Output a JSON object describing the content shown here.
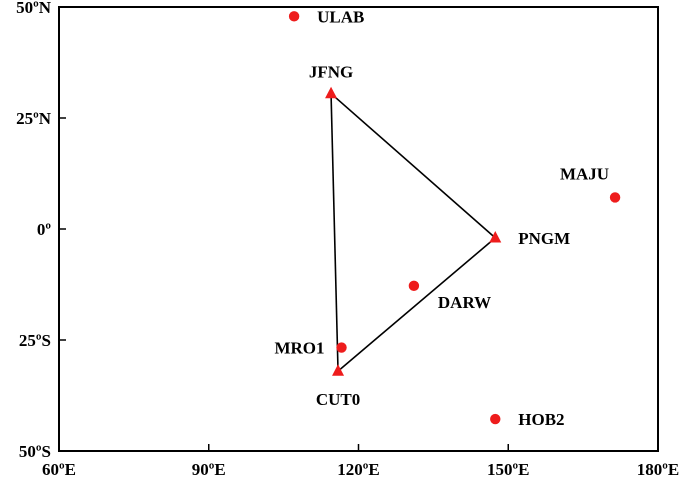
{
  "chart_data": {
    "type": "scatter",
    "title": "",
    "xlabel": "",
    "ylabel": "",
    "xlim": [
      60,
      180
    ],
    "ylim": [
      -50,
      50
    ],
    "grid": false,
    "x_ticks": [
      {
        "value": 60,
        "label": "60ºE"
      },
      {
        "value": 90,
        "label": "90ºE"
      },
      {
        "value": 120,
        "label": "120ºE"
      },
      {
        "value": 150,
        "label": "150ºE"
      },
      {
        "value": 180,
        "label": "180ºE"
      }
    ],
    "y_ticks": [
      {
        "value": 50,
        "label": "50ºN"
      },
      {
        "value": 25,
        "label": "25ºN"
      },
      {
        "value": 0,
        "label": "0º"
      },
      {
        "value": -25,
        "label": "25ºS"
      },
      {
        "value": -50,
        "label": "50ºS"
      }
    ],
    "triangle_stations": [
      {
        "name": "JFNG",
        "lon": 114.5,
        "lat": 30.5,
        "label_pos": "above"
      },
      {
        "name": "PNGM",
        "lon": 147.4,
        "lat": -2.0,
        "label_pos": "right"
      },
      {
        "name": "CUT0",
        "lon": 115.9,
        "lat": -32.0,
        "label_pos": "below"
      }
    ],
    "dot_stations": [
      {
        "name": "ULAB",
        "lon": 107.1,
        "lat": 47.9,
        "label_pos": "right"
      },
      {
        "name": "MAJU",
        "lon": 171.4,
        "lat": 7.1,
        "label_pos": "above-left"
      },
      {
        "name": "DARW",
        "lon": 131.1,
        "lat": -12.8,
        "label_pos": "below-right"
      },
      {
        "name": "MRO1",
        "lon": 116.6,
        "lat": -26.7,
        "label_pos": "left"
      },
      {
        "name": "HOB2",
        "lon": 147.4,
        "lat": -42.8,
        "label_pos": "right"
      }
    ],
    "triangle_edges": [
      [
        "JFNG",
        "PNGM"
      ],
      [
        "PNGM",
        "CUT0"
      ],
      [
        "CUT0",
        "JFNG"
      ]
    ],
    "marker_color": "#ee1c1c"
  }
}
